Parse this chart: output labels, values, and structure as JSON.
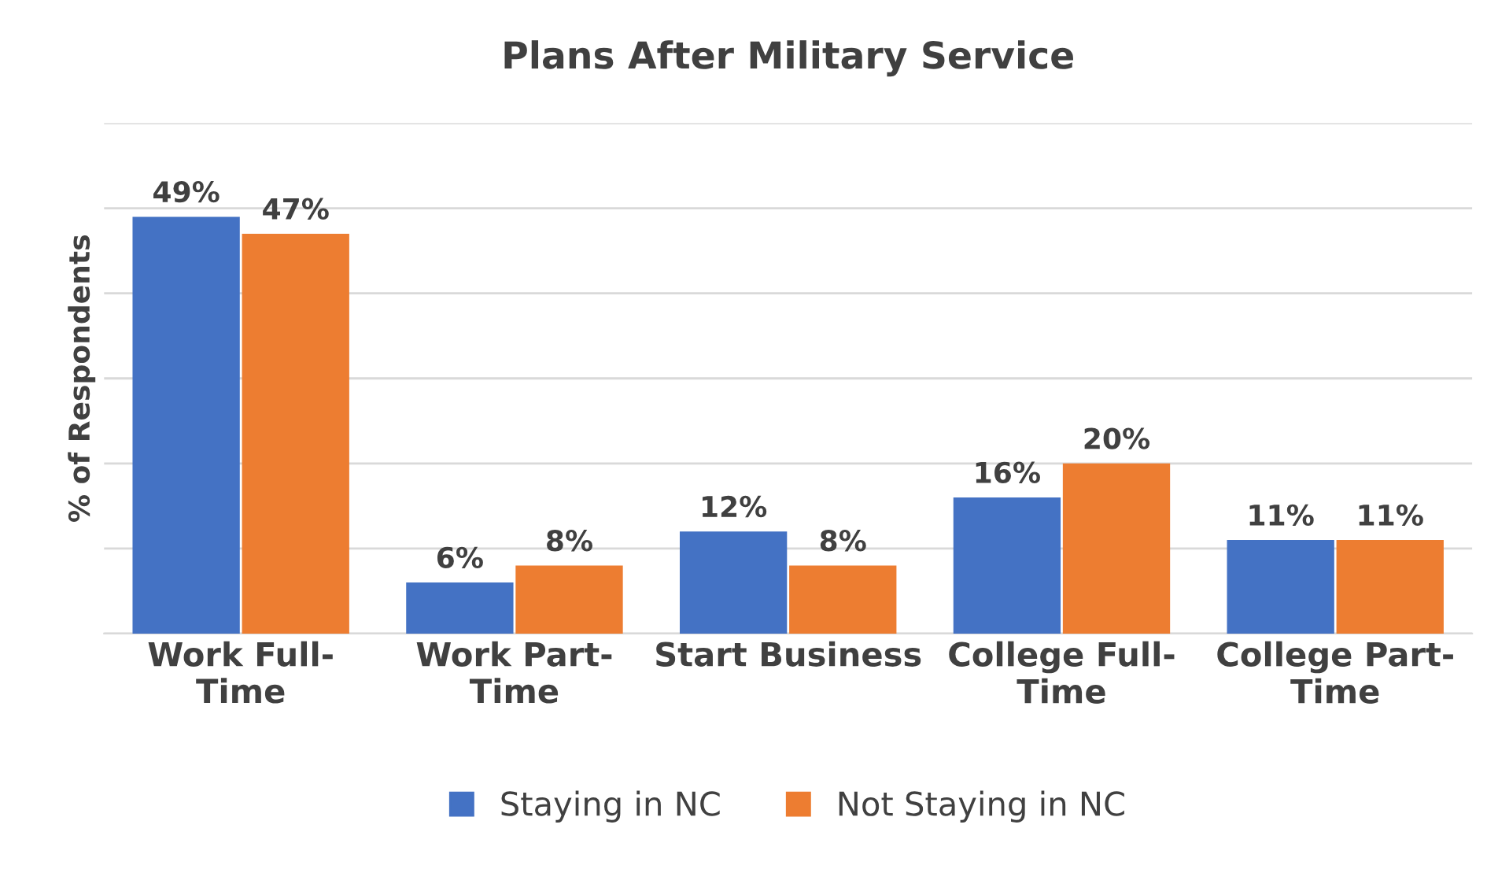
{
  "chart_data": {
    "type": "bar",
    "title": "Plans After Military Service",
    "ylabel": "% of Respondents",
    "categories": [
      "Work Full-Time",
      "Work Part-Time",
      "Start Business",
      "College Full-Time",
      "College Part-Time"
    ],
    "series": [
      {
        "name": "Staying in NC",
        "color": "#4472c4",
        "values": [
          49,
          6,
          12,
          16,
          11
        ],
        "value_labels": [
          "49%",
          "6%",
          "12%",
          "16%",
          "11%"
        ]
      },
      {
        "name": "Not Staying in NC",
        "color": "#ed7d31",
        "values": [
          47,
          8,
          8,
          20,
          11
        ],
        "value_labels": [
          "47%",
          "8%",
          "8%",
          "20%",
          "11%"
        ]
      }
    ],
    "ylim": [
      0,
      60
    ],
    "yticks": [
      {
        "value": 0,
        "label": null
      },
      {
        "value": 10,
        "label": null
      },
      {
        "value": 20,
        "label": null
      },
      {
        "value": 30,
        "label": null
      },
      {
        "value": 40,
        "label": null
      },
      {
        "value": 50,
        "label": null
      },
      {
        "value": 60,
        "label": null
      }
    ],
    "tick_labels": "x",
    "grid": "y",
    "legend": "bottom"
  }
}
